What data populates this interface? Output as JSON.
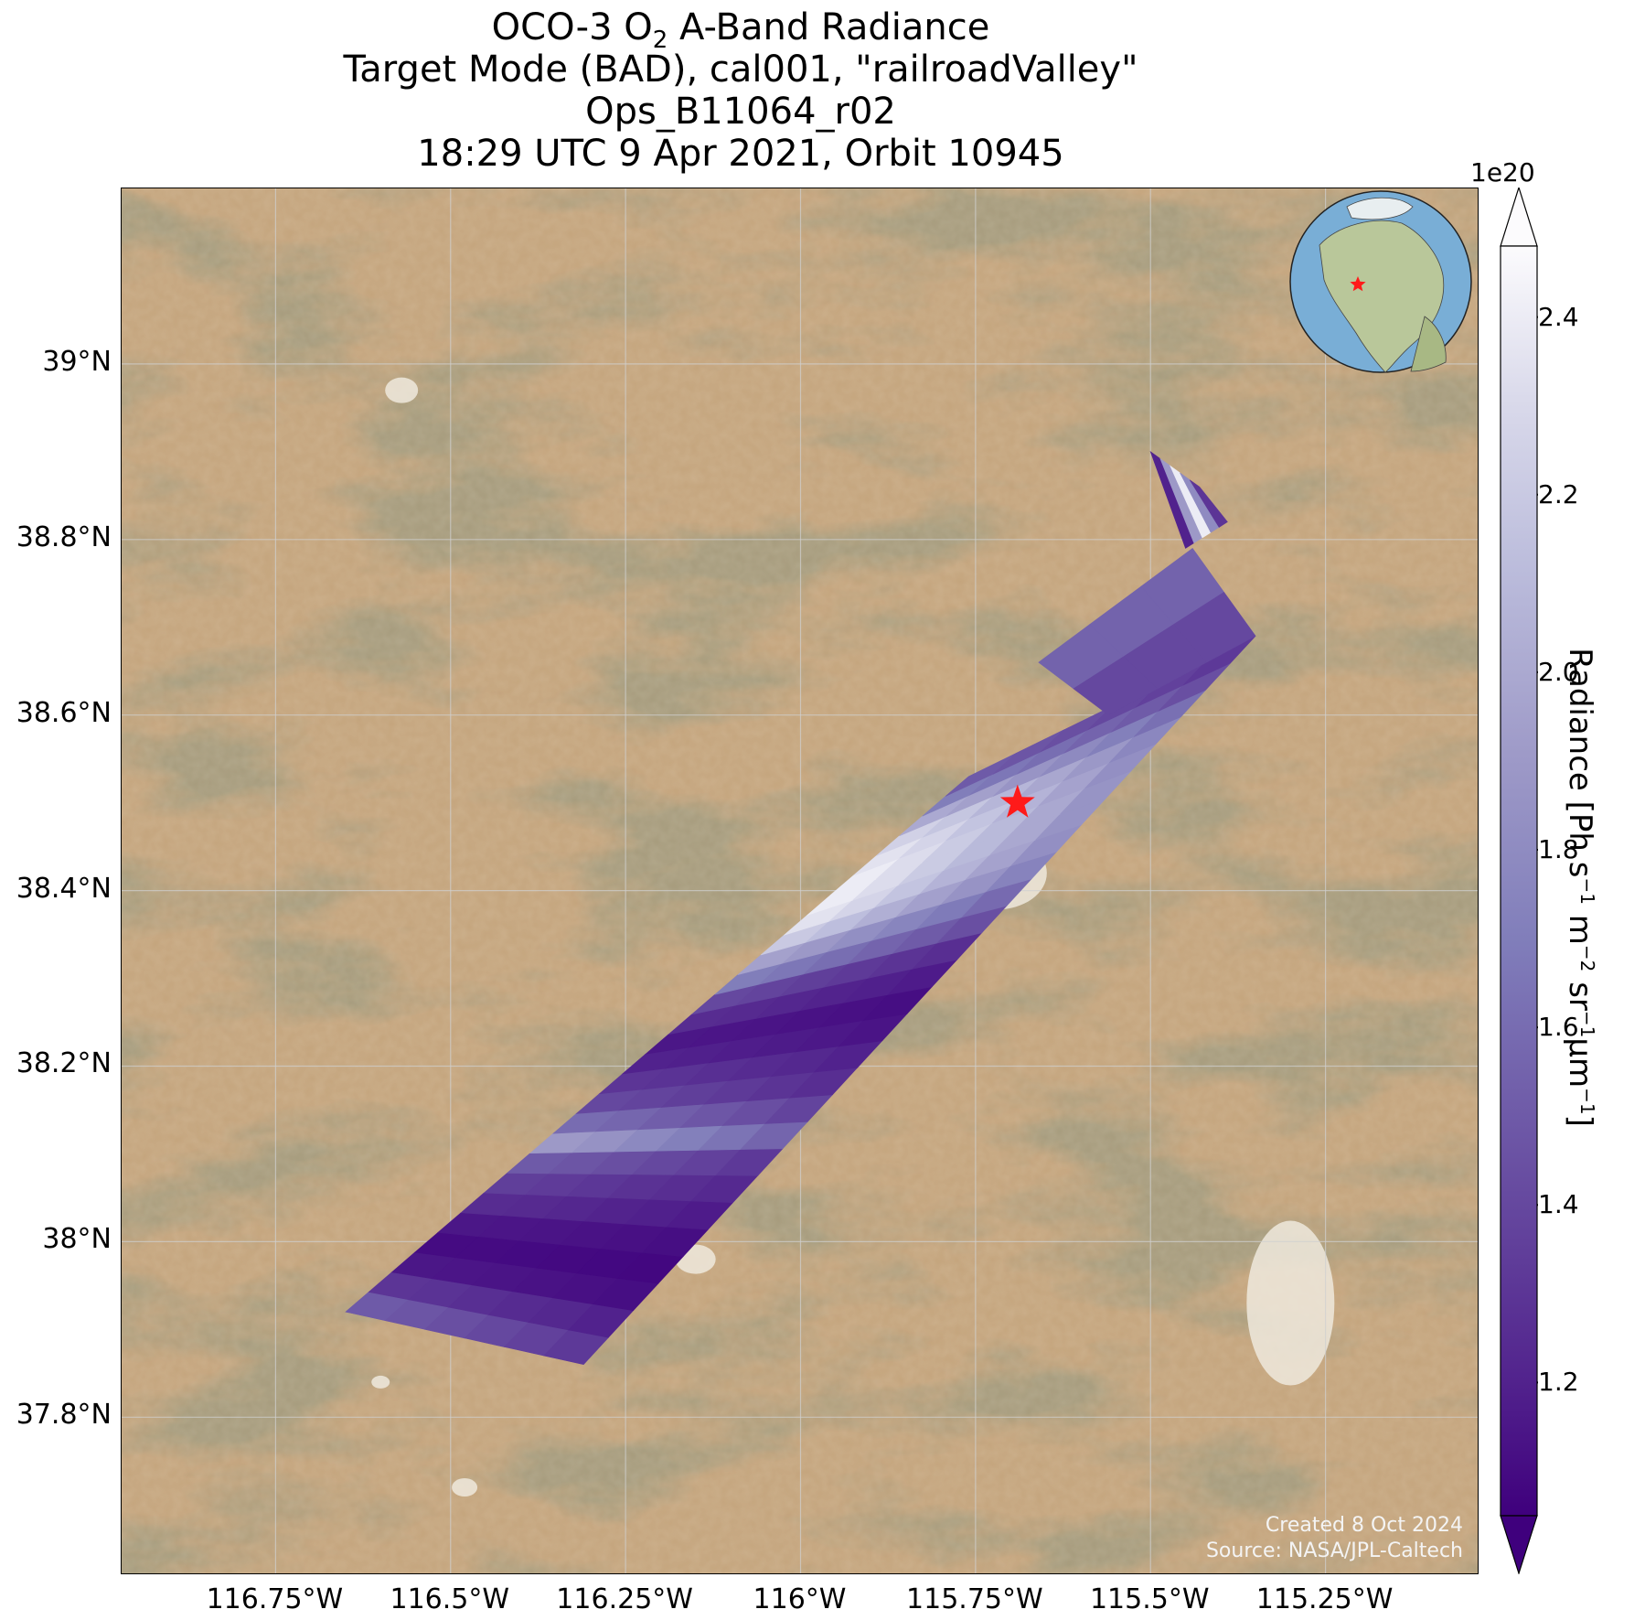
{
  "title": {
    "line1_pre": "OCO-3 O",
    "line1_sub": "2",
    "line1_post": " A-Band Radiance",
    "line2": "Target Mode (BAD), cal001, \"railroadValley\"",
    "line3": "Ops_B11064_r02",
    "line4": "18:29 UTC 9 Apr 2021, Orbit 10945"
  },
  "map": {
    "lon_range": [
      -116.97,
      -115.03
    ],
    "lat_range": [
      37.62,
      39.2
    ],
    "lon_ticks": [
      {
        "value": -116.75,
        "label": "116.75°W"
      },
      {
        "value": -116.5,
        "label": "116.5°W"
      },
      {
        "value": -116.25,
        "label": "116.25°W"
      },
      {
        "value": -116.0,
        "label": "116°W"
      },
      {
        "value": -115.75,
        "label": "115.75°W"
      },
      {
        "value": -115.5,
        "label": "115.5°W"
      },
      {
        "value": -115.25,
        "label": "115.25°W"
      }
    ],
    "lat_ticks": [
      {
        "value": 37.8,
        "label": "37.8°N"
      },
      {
        "value": 38.0,
        "label": "38°N"
      },
      {
        "value": 38.2,
        "label": "38.2°N"
      },
      {
        "value": 38.4,
        "label": "38.4°N"
      },
      {
        "value": 38.6,
        "label": "38.6°N"
      },
      {
        "value": 39.0,
        "label": "39°N"
      }
    ],
    "target_site": {
      "lon": -115.69,
      "lat": 38.5,
      "marker": "red-star"
    },
    "main_swath": {
      "corners_lonlat": [
        [
          -116.65,
          37.92
        ],
        [
          -115.76,
          38.53
        ],
        [
          -115.35,
          38.69
        ],
        [
          -116.31,
          37.86
        ]
      ],
      "along_track_radiance_1e20": [
        1.5,
        1.3,
        1.15,
        1.1,
        1.15,
        1.25,
        1.35,
        1.5,
        1.9,
        1.6,
        1.4,
        1.3,
        1.2,
        1.15,
        1.25,
        1.4,
        1.7,
        1.95,
        2.2,
        2.35,
        2.4,
        2.4,
        2.35,
        2.25,
        2.0,
        1.7,
        1.5
      ],
      "cross_track_factor": [
        1.0,
        0.94,
        0.86,
        0.78,
        0.7,
        0.6
      ]
    },
    "tip_swath": {
      "corners_lonlat": [
        [
          -115.66,
          38.66
        ],
        [
          -115.44,
          38.79
        ],
        [
          -115.35,
          38.69
        ],
        [
          -115.56,
          38.6
        ]
      ],
      "radiance_1e20": 1.55
    },
    "secondary_swath": {
      "corners_lonlat": [
        [
          -115.5,
          38.9
        ],
        [
          -115.43,
          38.86
        ],
        [
          -115.39,
          38.82
        ],
        [
          -115.45,
          38.79
        ]
      ],
      "radiance_1e20": [
        1.2,
        1.9,
        2.4,
        1.8,
        1.3
      ]
    },
    "land_colors": {
      "desert": "#c4a47c",
      "mountains": "#6b5e3a",
      "playa": "#efe9dd"
    }
  },
  "colorbar": {
    "vmin": 1.05,
    "vmax": 2.48,
    "colormap": "Purples_r",
    "exponent_label": "1e20",
    "ticks": [
      1.2,
      1.4,
      1.6,
      1.8,
      2.0,
      2.2,
      2.4
    ],
    "tick_labels": [
      "1.2",
      "1.4",
      "1.6",
      "1.8",
      "2.0",
      "2.2",
      "2.4"
    ],
    "label_parts": {
      "p1": "Radiance [Ph s",
      "s1": "−1",
      "p2": " m",
      "s2": "−2",
      "p3": " sr",
      "s3": "−1",
      "p4": "μm",
      "s4": "−1",
      "p5": "]"
    },
    "extend": "both"
  },
  "credits": {
    "created": "Created 8 Oct 2024",
    "source": "Source: NASA/JPL-Caltech"
  }
}
